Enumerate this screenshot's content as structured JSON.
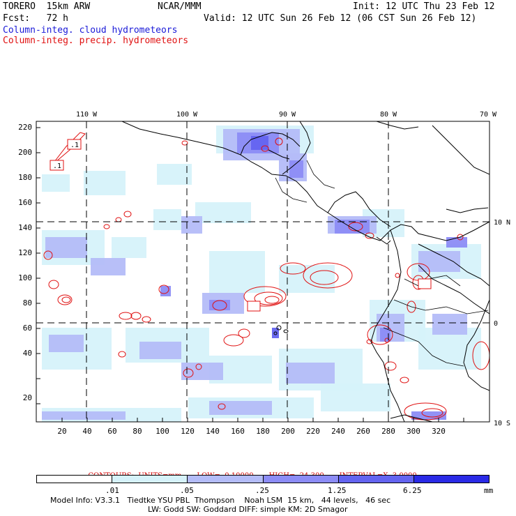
{
  "header": {
    "model": "TORERO  15km ARW",
    "org": "NCAR/MMM",
    "init": "Init: 12 UTC Thu 23 Feb 12",
    "fcst": "Fcst:   72 h",
    "valid": "Valid: 12 UTC Sun 26 Feb 12 (06 CST Sun 26 Feb 12)",
    "field1": "Column-integ. cloud hydrometeors",
    "field2": "Column-integ. precip. hydrometeors"
  },
  "colors": {
    "field1": "#1a1ad8",
    "field2": "#e01010",
    "shade_levels": [
      "#ffffff",
      "#d6f2fa",
      "#b4bcf8",
      "#8c8cf6",
      "#6464f0",
      "#2a2ae6"
    ]
  },
  "map": {
    "top_labels": [
      "110 W",
      "100 W",
      "90 W",
      "80 W",
      "70 W"
    ],
    "right_labels": [
      "10 N",
      "0",
      "10 S"
    ],
    "y_ticks": [
      "220",
      "200",
      "180",
      "160",
      "140",
      "120",
      "100",
      "80",
      "60",
      "40",
      "20"
    ],
    "x_ticks": [
      "20",
      "40",
      "60",
      "80",
      "100",
      "120",
      "140",
      "160",
      "180",
      "200",
      "220",
      "240",
      "260",
      "280",
      "300",
      "320"
    ],
    "box_labels": [
      ".1",
      ".1"
    ]
  },
  "contours": {
    "units": "CONTOURS:  UNITS=mm",
    "low": "LOW=  0.10000",
    "high": "HIGH=  24.300",
    "interval": "INTERVAL=X  3.0000"
  },
  "colorbar": {
    "labels": [
      ".01",
      ".05",
      ".25",
      "1.25",
      "6.25"
    ],
    "unit": "mm"
  },
  "footer": {
    "line1": "Model Info: V3.3.1   Tiedtke YSU PBL  Thompson    Noah LSM  15 km,   44 levels,   46 sec",
    "line2": "LW: Godd SW: Goddard DIFF: simple KM: 2D Smagor"
  }
}
